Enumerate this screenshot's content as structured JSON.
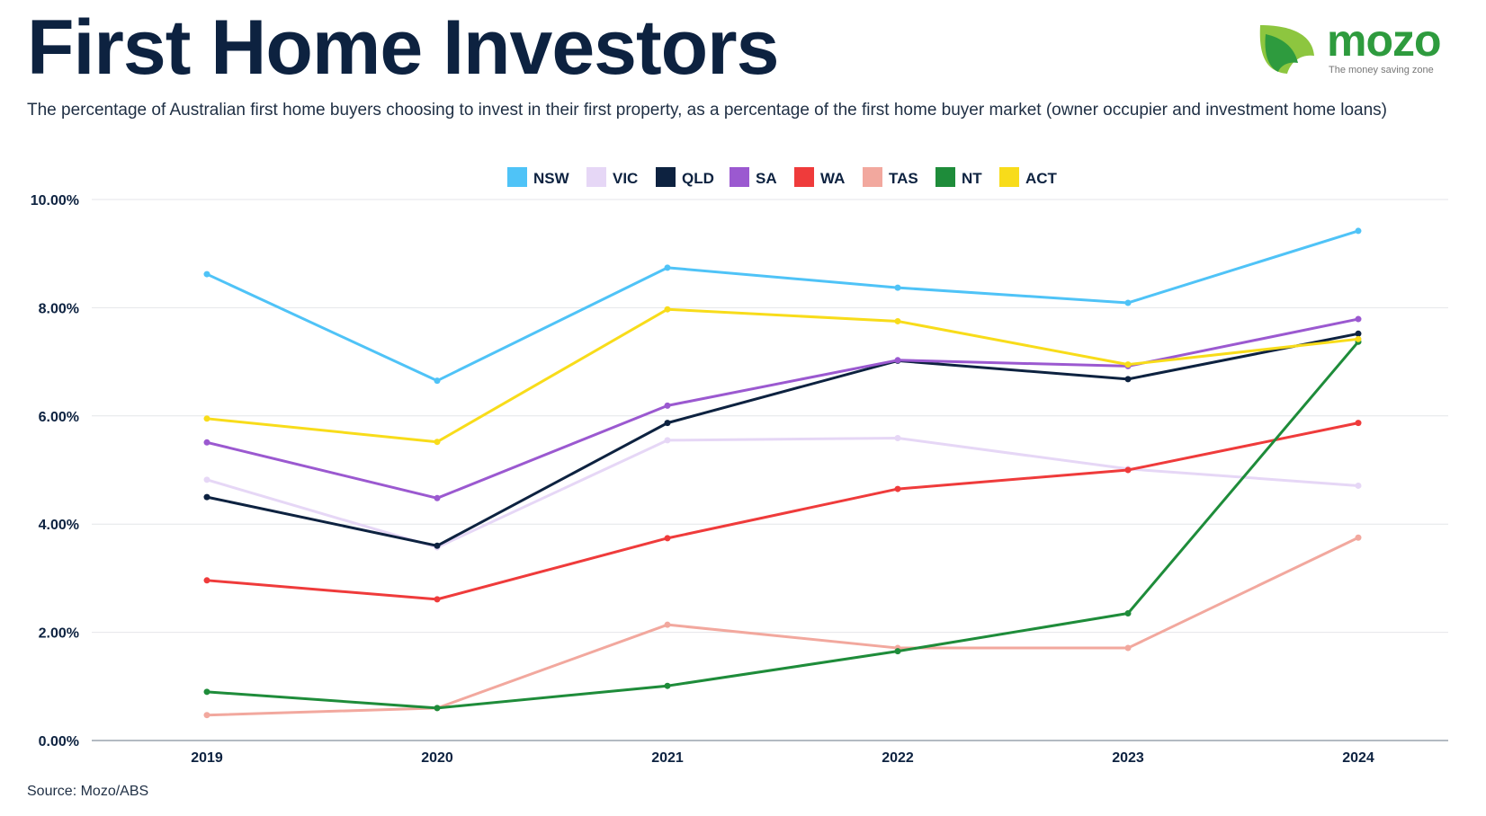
{
  "header": {
    "title": "First Home Investors",
    "subtitle": "The percentage of Australian first home buyers choosing to invest in their first property, as a percentage of the first home buyer market (owner occupier and investment home loans)"
  },
  "logo": {
    "word": "mozo",
    "tagline": "The money saving zone",
    "colors": {
      "green": "#2e9b3e",
      "light_green": "#8dc63f"
    }
  },
  "footer": {
    "source": "Source: Mozo/ABS"
  },
  "chart_data": {
    "type": "line",
    "x": [
      "2019",
      "2020",
      "2021",
      "2022",
      "2023",
      "2024"
    ],
    "ylim": [
      0,
      10
    ],
    "yticks": [
      "0.00%",
      "2.00%",
      "4.00%",
      "6.00%",
      "8.00%",
      "10.00%"
    ],
    "grid": true,
    "legend_position": "top-center",
    "series": [
      {
        "name": "NSW",
        "color": "#4fc3f7",
        "values": [
          8.62,
          6.65,
          8.74,
          8.37,
          8.09,
          9.42
        ]
      },
      {
        "name": "VIC",
        "color": "#e6d7f6",
        "values": [
          4.82,
          3.57,
          5.55,
          5.59,
          5.02,
          4.71
        ]
      },
      {
        "name": "QLD",
        "color": "#0d2240",
        "values": [
          4.5,
          3.6,
          5.87,
          7.02,
          6.68,
          7.52
        ]
      },
      {
        "name": "SA",
        "color": "#9b59d0",
        "values": [
          5.51,
          4.48,
          6.19,
          7.03,
          6.92,
          7.79
        ]
      },
      {
        "name": "WA",
        "color": "#ef3b3b",
        "values": [
          2.96,
          2.61,
          3.74,
          4.65,
          5.0,
          5.87
        ]
      },
      {
        "name": "TAS",
        "color": "#f2a89e",
        "values": [
          0.47,
          0.6,
          2.14,
          1.71,
          1.71,
          3.75
        ]
      },
      {
        "name": "NT",
        "color": "#1e8c3a",
        "values": [
          0.9,
          0.6,
          1.01,
          1.65,
          2.35,
          7.37
        ]
      },
      {
        "name": "ACT",
        "color": "#f8dc1a",
        "values": [
          5.95,
          5.52,
          7.97,
          7.75,
          6.95,
          7.42
        ]
      }
    ]
  }
}
